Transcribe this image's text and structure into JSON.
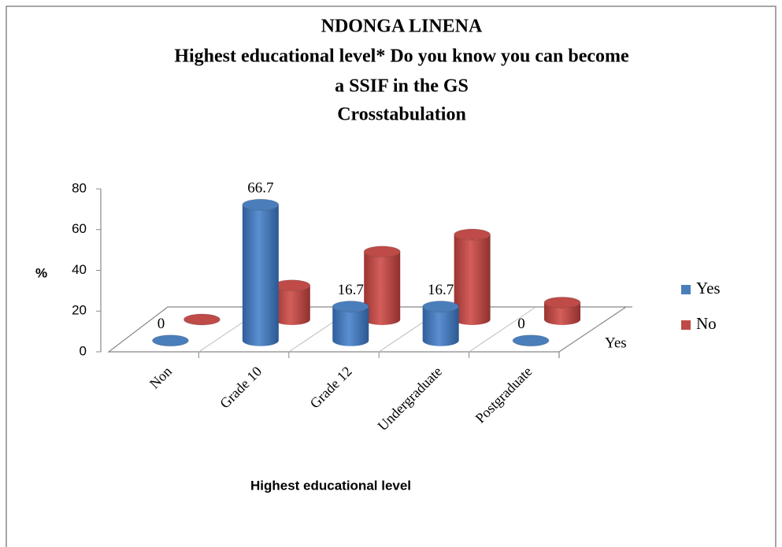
{
  "chart_data": {
    "type": "bar3d",
    "title": [
      "NDONGA LINENA",
      "Highest educational level* Do you know you can become",
      "a SSIF in the GS",
      "Crosstabulation"
    ],
    "x_label": "Highest educational level",
    "y_label": "%",
    "depth_categories": [
      "Yes"
    ],
    "categories": [
      "Non",
      "Grade 10",
      "Grade 12",
      "Undergraduate",
      "Postgraduate"
    ],
    "series": [
      {
        "name": "Yes",
        "color": "#4a7ebb",
        "values": [
          0,
          66.7,
          16.7,
          16.7,
          0
        ],
        "data_labels": true
      },
      {
        "name": "No",
        "color": "#be4b48",
        "values": [
          0,
          16.7,
          33.3,
          41.7,
          8.3
        ],
        "data_labels": false
      }
    ],
    "ylim": [
      0,
      80
    ],
    "yticks": [
      0,
      20,
      40,
      60,
      80
    ],
    "legend": "right"
  }
}
